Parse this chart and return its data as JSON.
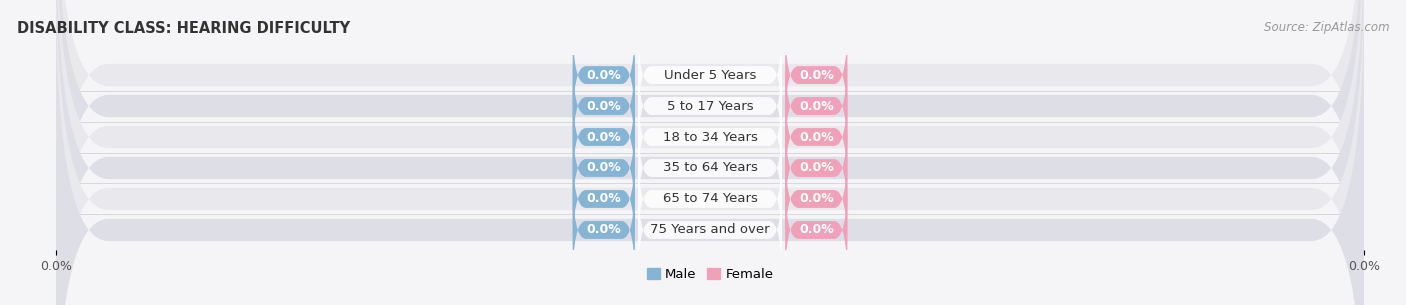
{
  "title": "DISABILITY CLASS: HEARING DIFFICULTY",
  "source": "Source: ZipAtlas.com",
  "categories": [
    "Under 5 Years",
    "5 to 17 Years",
    "18 to 34 Years",
    "35 to 64 Years",
    "65 to 74 Years",
    "75 Years and over"
  ],
  "male_values": [
    0.0,
    0.0,
    0.0,
    0.0,
    0.0,
    0.0
  ],
  "female_values": [
    0.0,
    0.0,
    0.0,
    0.0,
    0.0,
    0.0
  ],
  "male_color": "#85b4d4",
  "female_color": "#f0a0b8",
  "bar_bg_color_even": "#e8e8ed",
  "bar_bg_color_odd": "#dedee6",
  "title_fontsize": 10.5,
  "source_fontsize": 8.5,
  "label_fontsize": 9,
  "cat_fontsize": 9.5,
  "tick_fontsize": 9,
  "xlim": [
    -100.0,
    100.0
  ],
  "bar_height": 0.72,
  "value_label_color": "white",
  "category_label_color": "#333333",
  "category_bg_color": "white",
  "bg_color": "#f5f5f8",
  "legend_male": "Male",
  "legend_female": "Female"
}
